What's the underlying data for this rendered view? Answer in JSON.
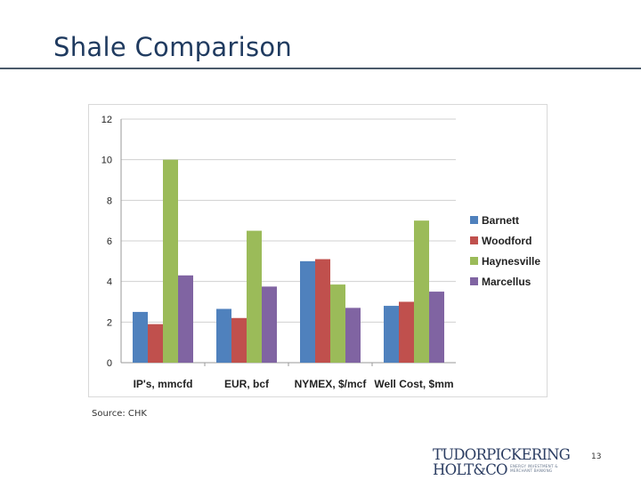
{
  "slide": {
    "title": "Shale Comparison",
    "source": "Source: CHK",
    "page_number": "13"
  },
  "logo": {
    "line1": "TUDORPICKERING",
    "line2": "HOLT&CO",
    "tagline": [
      "ENERGY INVESTMENT &",
      "MERCHANT BANKING"
    ]
  },
  "colors": {
    "title": "#1f3a5f",
    "Barnett": "#4f81bd",
    "Woodford": "#c0504d",
    "Haynesville": "#9bbb59",
    "Marcellus": "#8064a2",
    "gridline": "#d0d0d0"
  },
  "chart_data": {
    "type": "bar",
    "title": "",
    "xlabel": "",
    "ylabel": "",
    "categories": [
      "IP's, mmcfd",
      "EUR, bcf",
      "NYMEX, $/mcf",
      "Well Cost, $mm"
    ],
    "series": [
      {
        "name": "Barnett",
        "values": [
          2.5,
          2.65,
          5.0,
          2.8
        ]
      },
      {
        "name": "Woodford",
        "values": [
          1.9,
          2.2,
          5.1,
          3.0
        ]
      },
      {
        "name": "Haynesville",
        "values": [
          10.0,
          6.5,
          3.85,
          7.0
        ]
      },
      {
        "name": "Marcellus",
        "values": [
          4.3,
          3.75,
          2.7,
          3.5
        ]
      }
    ],
    "ylim": [
      0,
      12
    ],
    "yticks": [
      0,
      2,
      4,
      6,
      8,
      10,
      12
    ],
    "grid": true,
    "legend_position": "right"
  }
}
